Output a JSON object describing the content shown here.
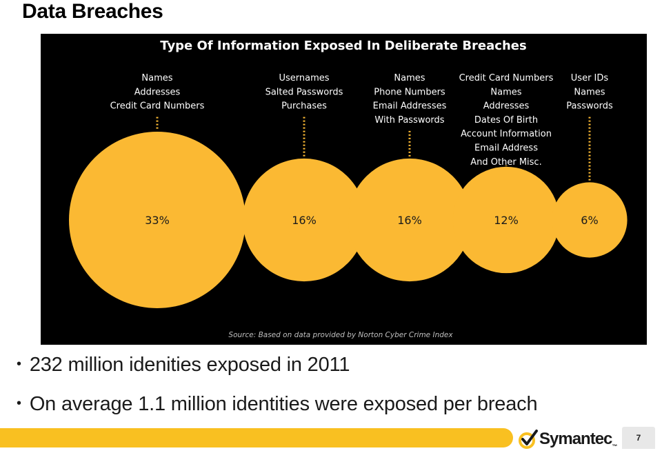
{
  "slide": {
    "title": "Data Breaches",
    "bullets": [
      "232 million idenities exposed in 2011",
      "On average 1.1 million identities were exposed per breach"
    ],
    "page_number": "7",
    "logo_text": "Symantec",
    "logo_tm": "™"
  },
  "colors": {
    "accent": "#f9c021",
    "bubble": "#fbb933",
    "panel": "#000000"
  },
  "chart_data": {
    "type": "bubble",
    "title": "Type Of Information Exposed In Deliberate Breaches",
    "source": "Source: Based on data provided by Norton Cyber Crime Index",
    "series": [
      {
        "value": 33,
        "label": "33%",
        "items": [
          "Names",
          "Addresses",
          "Credit Card Numbers"
        ]
      },
      {
        "value": 16,
        "label": "16%",
        "items": [
          "Usernames",
          "Salted Passwords",
          "Purchases"
        ]
      },
      {
        "value": 16,
        "label": "16%",
        "items": [
          "Names",
          "Phone Numbers",
          "Email Addresses",
          "With Passwords"
        ]
      },
      {
        "value": 12,
        "label": "12%",
        "items": [
          "Credit Card Numbers",
          "Names",
          "Addresses",
          "Dates Of Birth",
          "Account Information",
          "Email Address",
          "And Other Misc."
        ]
      },
      {
        "value": 6,
        "label": "6%",
        "items": [
          "User IDs",
          "Names",
          "Passwords"
        ]
      }
    ]
  }
}
